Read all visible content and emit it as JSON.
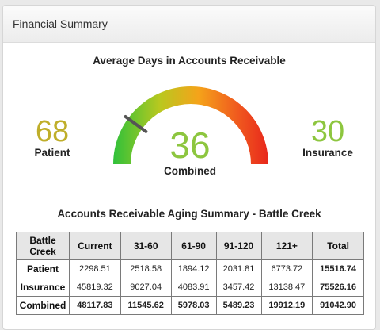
{
  "header": {
    "title": "Financial Summary"
  },
  "gauge": {
    "title": "Average Days in Accounts Receivable",
    "patient": {
      "value": "68",
      "label": "Patient",
      "color": "#bfae2a"
    },
    "combined": {
      "value": "36",
      "label": "Combined",
      "color": "#8dc63f"
    },
    "insurance": {
      "value": "30",
      "label": "Insurance",
      "color": "#8dc63f"
    },
    "needle_fraction": 0.2
  },
  "aging": {
    "title": "Accounts Receivable Aging Summary - Battle Creek",
    "columns": [
      "Battle Creek",
      "Current",
      "31-60",
      "61-90",
      "91-120",
      "121+",
      "Total"
    ],
    "rows": [
      {
        "label": "Patient",
        "cells": [
          "2298.51",
          "2518.58",
          "1894.12",
          "2031.81",
          "6773.72",
          "15516.74"
        ]
      },
      {
        "label": "Insurance",
        "cells": [
          "45819.32",
          "9027.04",
          "4083.91",
          "3457.42",
          "13138.47",
          "75526.16"
        ]
      },
      {
        "label": "Combined",
        "cells": [
          "48117.83",
          "11545.62",
          "5978.03",
          "5489.23",
          "19912.19",
          "91042.90"
        ]
      }
    ]
  }
}
